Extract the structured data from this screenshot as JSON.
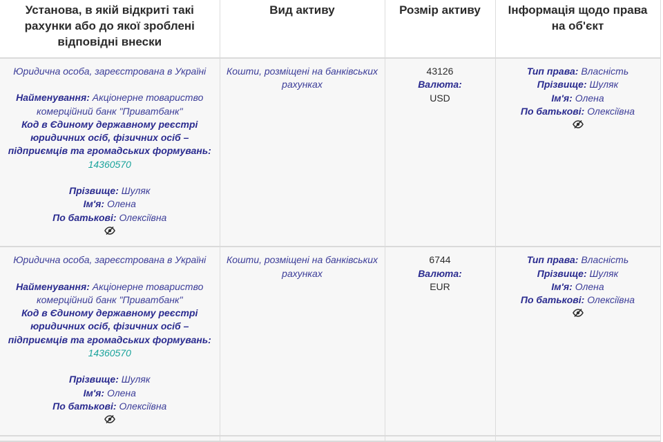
{
  "headers": {
    "institution": "Установа, в якій відкриті такі рахунки або до якої зроблені відповідні внески",
    "asset_type": "Вид активу",
    "asset_size": "Розмір активу",
    "rights_info": "Інформація щодо права на об'єкт"
  },
  "labels": {
    "name": "Найменування:",
    "edrpou_code": "Код в Єдиному державному реєстрі юридичних осіб, фізичних осіб – підприємців та громадських формувань:",
    "surname": "Прізвище:",
    "first_name": "Ім'я:",
    "patronymic": "По батькові:",
    "currency": "Валюта:",
    "right_type": "Тип права:"
  },
  "rows": [
    {
      "legal_status": "Юридична особа, зареєстрована в Україні",
      "institution_name": "Акціонерне товариство комерційний банк \"Приватбанк\"",
      "code": "14360570",
      "surname": "Шуляк",
      "first_name": "Олена",
      "patronymic": "Олексіївна",
      "asset_type": "Кошти, розміщені на банківських рахунках",
      "amount": "43126",
      "currency": "USD",
      "right_type": "Власність",
      "owner_surname": "Шуляк",
      "owner_first_name": "Олена",
      "owner_patronymic": "Олексіївна"
    },
    {
      "legal_status": "Юридична особа, зареєстрована в Україні",
      "institution_name": "Акціонерне товариство комерційний банк \"Приватбанк\"",
      "code": "14360570",
      "surname": "Шуляк",
      "first_name": "Олена",
      "patronymic": "Олексіївна",
      "asset_type": "Кошти, розміщені на банківських рахунках",
      "amount": "6744",
      "currency": "EUR",
      "right_type": "Власність",
      "owner_surname": "Шуляк",
      "owner_first_name": "Олена",
      "owner_patronymic": "Олексіївна"
    }
  ],
  "icons": {
    "hidden_data": "eye-off-icon"
  },
  "colors": {
    "label": "#2a2b8f",
    "value": "#3b3c98",
    "code": "#19a39b",
    "header": "#2b2b2b"
  }
}
